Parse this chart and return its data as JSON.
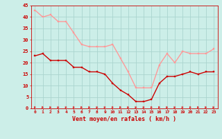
{
  "x": [
    0,
    1,
    2,
    3,
    4,
    5,
    6,
    7,
    8,
    9,
    10,
    11,
    12,
    13,
    14,
    15,
    16,
    17,
    18,
    19,
    20,
    21,
    22,
    23
  ],
  "wind_avg": [
    23,
    24,
    21,
    21,
    21,
    18,
    18,
    16,
    16,
    15,
    11,
    8,
    6,
    3,
    3,
    4,
    11,
    14,
    14,
    15,
    16,
    15,
    16,
    16
  ],
  "wind_gust": [
    43,
    40,
    41,
    38,
    38,
    33,
    28,
    27,
    27,
    27,
    28,
    22,
    16,
    9,
    9,
    9,
    19,
    24,
    20,
    25,
    24,
    24,
    24,
    26
  ],
  "bg_color": "#cceee8",
  "grid_color": "#aad4ce",
  "avg_color": "#cc0000",
  "gust_color": "#ff9999",
  "arrow_color": "#dd2222",
  "xlabel": "Vent moyen/en rafales ( km/h )",
  "xlabel_color": "#cc0000",
  "tick_color": "#cc0000",
  "spine_color": "#cc0000",
  "ylim": [
    0,
    45
  ],
  "yticks": [
    0,
    5,
    10,
    15,
    20,
    25,
    30,
    35,
    40,
    45
  ]
}
